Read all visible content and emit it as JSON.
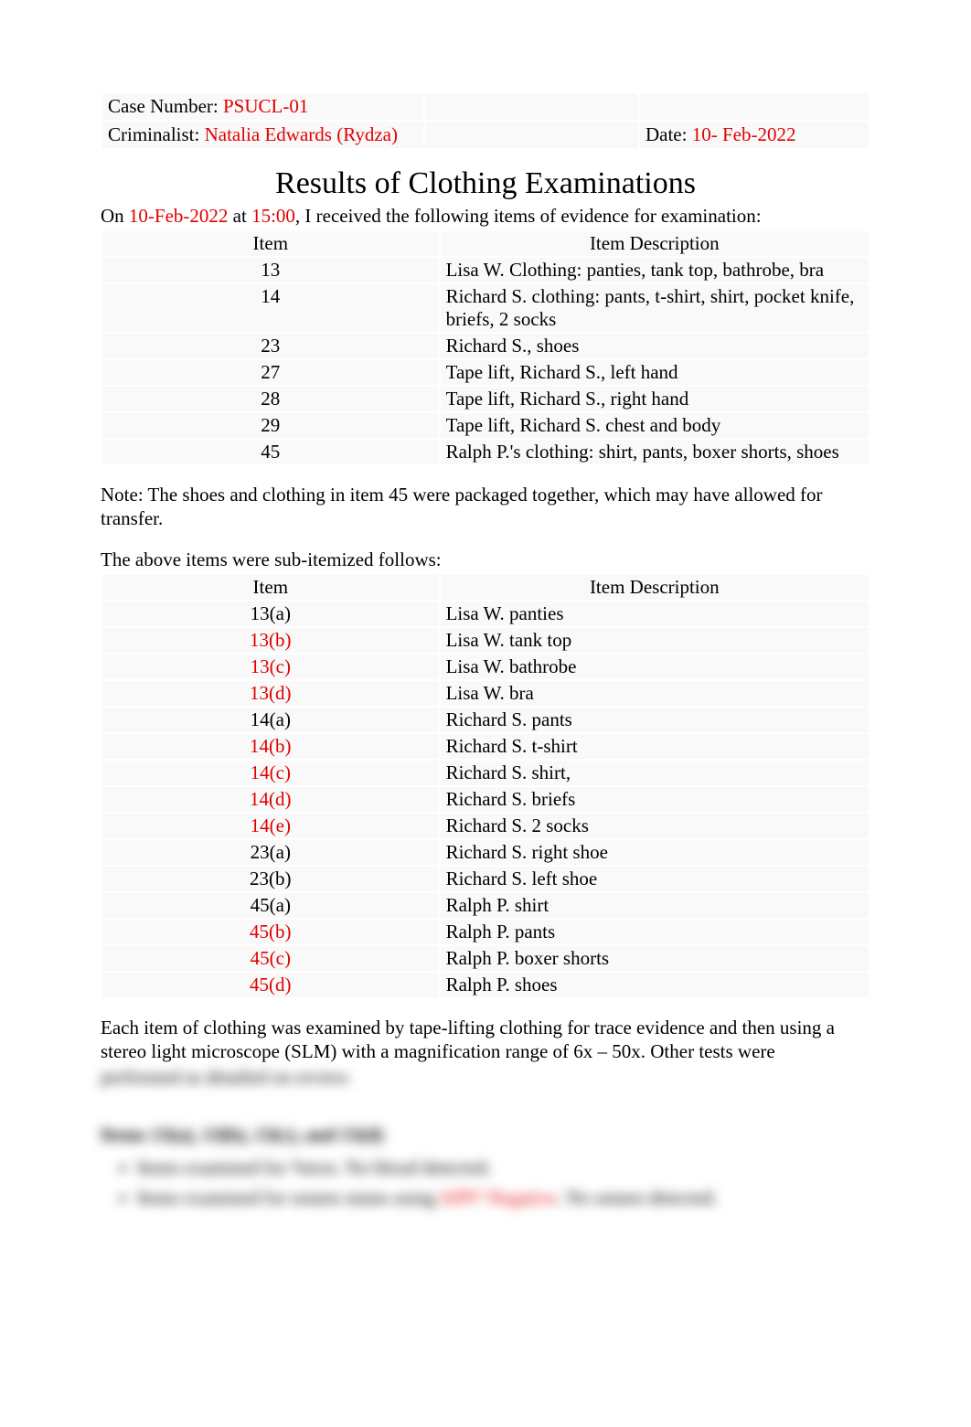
{
  "header": {
    "case_number_label": "Case Number: ",
    "case_number_value": "PSUCL-01",
    "criminalist_label": "Criminalist: ",
    "criminalist_value": "Natalia Edwards (Rydza)",
    "date_label": "Date: ",
    "date_value": "10- Feb-2022"
  },
  "title": "Results of Clothing Examinations",
  "intro": {
    "prefix": "On ",
    "date": "10-Feb-2022",
    "mid": " at ",
    "time": "15:00",
    "suffix": ", I received the following items of evidence for examination:"
  },
  "items_table": {
    "col1": "Item",
    "col2": "Item Description",
    "rows": [
      {
        "item": "13",
        "item_red": false,
        "desc": "Lisa W. Clothing: panties, tank top, bathrobe, bra"
      },
      {
        "item": "14",
        "item_red": false,
        "desc": "Richard S. clothing: pants, t-shirt, shirt, pocket knife, briefs, 2 socks"
      },
      {
        "item": "23",
        "item_red": false,
        "desc": "Richard S., shoes"
      },
      {
        "item": "27",
        "item_red": false,
        "desc": "Tape lift, Richard S., left hand"
      },
      {
        "item": "28",
        "item_red": false,
        "desc": "Tape lift, Richard S., right hand"
      },
      {
        "item": "29",
        "item_red": false,
        "desc": "Tape lift, Richard S. chest and body"
      },
      {
        "item": "45",
        "item_red": false,
        "desc": "Ralph P.'s clothing: shirt, pants, boxer shorts, shoes"
      }
    ]
  },
  "note": "Note: The shoes and clothing in item 45 were packaged together, which may have allowed for transfer.",
  "subitem_intro": "The above items were sub-itemized follows:",
  "subitems_table": {
    "col1": "Item",
    "col2": "Item Description",
    "rows": [
      {
        "item": "13(a)",
        "item_red": false,
        "desc": "Lisa W. panties"
      },
      {
        "item": "13(b)",
        "item_red": true,
        "desc": "Lisa W. tank top"
      },
      {
        "item": "13(c)",
        "item_red": true,
        "desc": "Lisa W. bathrobe"
      },
      {
        "item": "13(d)",
        "item_red": true,
        "desc": "Lisa W. bra"
      },
      {
        "item": "14(a)",
        "item_red": false,
        "desc": "Richard S. pants"
      },
      {
        "item": "14(b)",
        "item_red": true,
        "desc": "Richard S.  t-shirt"
      },
      {
        "item": "14(c)",
        "item_red": true,
        "desc": "Richard S. shirt,"
      },
      {
        "item": "14(d)",
        "item_red": true,
        "desc": "Richard S. briefs"
      },
      {
        "item": "14(e)",
        "item_red": true,
        "desc": "Richard S. 2 socks"
      },
      {
        "item": "23(a)",
        "item_red": false,
        "desc": "Richard S. right shoe"
      },
      {
        "item": "23(b)",
        "item_red": false,
        "desc": "Richard S. left shoe"
      },
      {
        "item": "45(a)",
        "item_red": false,
        "desc": "Ralph P. shirt"
      },
      {
        "item": "45(b)",
        "item_red": true,
        "desc": "Ralph P. pants"
      },
      {
        "item": "45(c)",
        "item_red": true,
        "desc": "Ralph P. boxer shorts"
      },
      {
        "item": "45(d)",
        "item_red": true,
        "desc": "Ralph P. shoes"
      }
    ]
  },
  "method_para": "Each item of clothing was examined by tape-lifting clothing for trace evidence and then using a stereo light microscope (SLM) with a magnification range of 6x – 50x. Other tests were",
  "blurred": {
    "line1": "performed as detailed on review.",
    "heading": "Items 13(a), 13(b), 13(c), and 13(d)",
    "bullet1": "Items examined for %text. No blood detected.",
    "bullet2_pre": "Items examined for semen stains using ",
    "bullet2_red": "APP? Negative",
    "bullet2_post": ". No semen detected."
  },
  "colors": {
    "red": "#e10000",
    "black": "#000000",
    "row_bg": "#f9f9f9",
    "page_bg": "#ffffff"
  }
}
